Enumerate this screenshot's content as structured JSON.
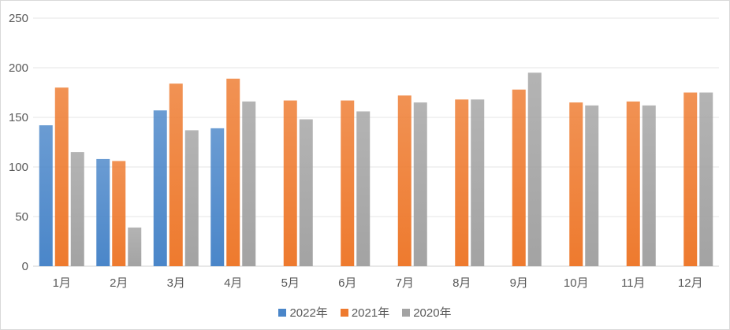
{
  "chart_data": {
    "type": "bar",
    "categories": [
      "1月",
      "2月",
      "3月",
      "4月",
      "5月",
      "6月",
      "7月",
      "8月",
      "9月",
      "10月",
      "11月",
      "12月"
    ],
    "series": [
      {
        "name": "2022年",
        "color": "#4a86c9",
        "values": [
          142,
          108,
          157,
          139,
          null,
          null,
          null,
          null,
          null,
          null,
          null,
          null
        ]
      },
      {
        "name": "2021年",
        "color": "#ee7a2e",
        "values": [
          180,
          106,
          184,
          189,
          167,
          167,
          172,
          168,
          178,
          165,
          166,
          175
        ]
      },
      {
        "name": "2020年",
        "color": "#a3a3a3",
        "values": [
          115,
          39,
          137,
          166,
          148,
          156,
          165,
          168,
          195,
          162,
          162,
          175
        ]
      }
    ],
    "ylim": [
      0,
      250
    ],
    "yticks": [
      "0",
      "50",
      "100",
      "150",
      "200",
      "250"
    ],
    "grid": true,
    "legend_position": "bottom"
  }
}
